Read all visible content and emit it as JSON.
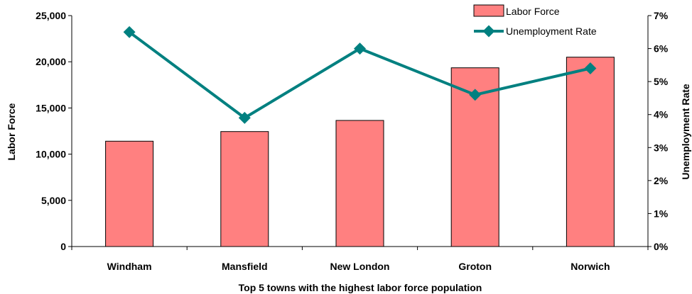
{
  "chart_data": {
    "type": "bar",
    "categories": [
      "Windham",
      "Mansfield",
      "New London",
      "Groton",
      "Norwich"
    ],
    "series": [
      {
        "name": "Labor Force",
        "type": "bar",
        "axis": "left",
        "color": "#ff8080",
        "values": [
          11400,
          12450,
          13650,
          19350,
          20500
        ]
      },
      {
        "name": "Unemployment Rate",
        "type": "line",
        "axis": "right",
        "color": "#008080",
        "values": [
          6.5,
          3.9,
          6.0,
          4.6,
          5.4
        ]
      }
    ],
    "xlabel": "Top 5 towns with the highest labor force population",
    "ylabel": "Labor Force",
    "y2label": "Unemployment Rate",
    "ylim": [
      0,
      25000
    ],
    "y2lim": [
      0,
      7
    ],
    "yticks": [
      "0",
      "5,000",
      "10,000",
      "15,000",
      "20,000",
      "25,000"
    ],
    "y2ticks": [
      "0%",
      "1%",
      "2%",
      "3%",
      "4%",
      "5%",
      "6%",
      "7%"
    ],
    "grid": false,
    "legend": "top-right"
  }
}
